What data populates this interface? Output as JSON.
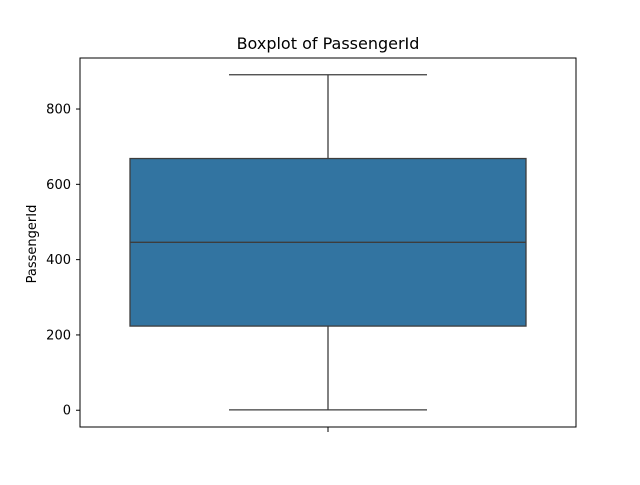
{
  "chart_data": {
    "type": "boxplot",
    "title": "Boxplot of PassengerId",
    "xlabel": "",
    "ylabel": "PassengerId",
    "ylim": [
      -44.5,
      935.5
    ],
    "yticks": [
      0,
      200,
      400,
      600,
      800
    ],
    "box": {
      "color": "#3274a1",
      "line_color": "#3d3d3d",
      "whisker_low": 1,
      "q1": 223.5,
      "median": 446,
      "q3": 668.5,
      "whisker_high": 891
    },
    "grid": false
  }
}
